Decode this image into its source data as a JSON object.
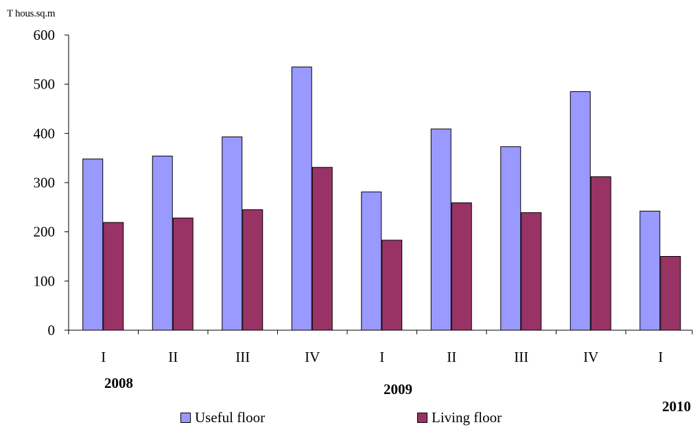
{
  "unit_label": "T hous.sq.m",
  "chart_data": {
    "type": "bar",
    "categories": [
      "I",
      "II",
      "III",
      "IV",
      "I",
      "II",
      "III",
      "IV",
      "I"
    ],
    "years": [
      "2008",
      "2009",
      "2010"
    ],
    "series": [
      {
        "name": "Useful floor",
        "color": "#9999ff",
        "values": [
          348,
          354,
          393,
          535,
          281,
          409,
          373,
          485,
          242
        ]
      },
      {
        "name": "Living floor",
        "color": "#993366",
        "values": [
          219,
          228,
          245,
          331,
          183,
          259,
          239,
          312,
          150
        ]
      }
    ],
    "ylim": [
      0,
      600
    ],
    "yticks": [
      0,
      100,
      200,
      300,
      400,
      500,
      600
    ],
    "grid": false,
    "legend_position": "bottom"
  }
}
